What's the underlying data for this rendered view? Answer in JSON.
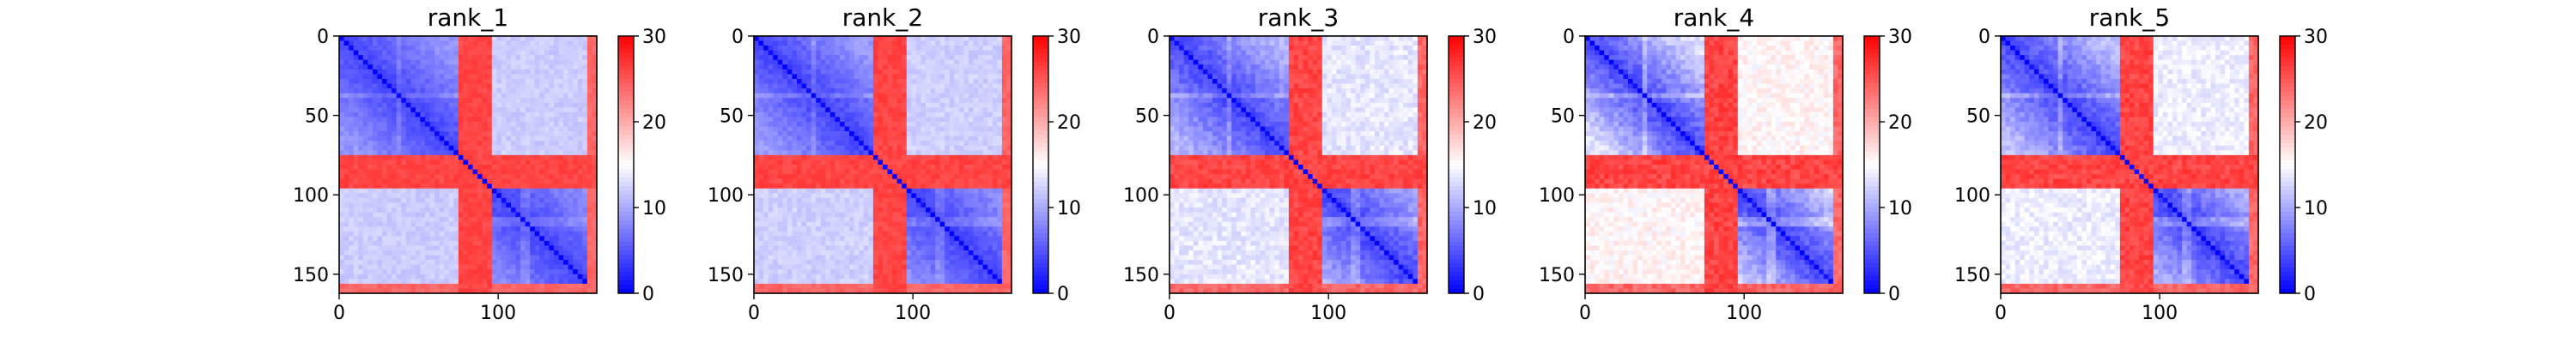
{
  "chart_data": [
    {
      "type": "heatmap",
      "title": "rank_1",
      "xticks": [
        "0",
        "100"
      ],
      "yticks": [
        "0",
        "50",
        "100",
        "150"
      ],
      "xlim": [
        0,
        162
      ],
      "ylim": [
        162,
        0
      ],
      "colorbar": {
        "ticks": [
          "0",
          "10",
          "20",
          "30"
        ],
        "range": [
          0,
          30
        ],
        "cmap": "bwr"
      },
      "variant": {
        "seed": 11,
        "block_strength": 0.4,
        "offdiag_noise": 0.2
      }
    },
    {
      "type": "heatmap",
      "title": "rank_2",
      "xticks": [
        "0",
        "100"
      ],
      "yticks": [
        "0",
        "50",
        "100",
        "150"
      ],
      "xlim": [
        0,
        162
      ],
      "ylim": [
        162,
        0
      ],
      "colorbar": {
        "ticks": [
          "0",
          "10",
          "20",
          "30"
        ],
        "range": [
          0,
          30
        ],
        "cmap": "bwr"
      },
      "variant": {
        "seed": 23,
        "block_strength": 0.42,
        "offdiag_noise": 0.22
      }
    },
    {
      "type": "heatmap",
      "title": "rank_3",
      "xticks": [
        "0",
        "100"
      ],
      "yticks": [
        "0",
        "50",
        "100",
        "150"
      ],
      "xlim": [
        0,
        162
      ],
      "ylim": [
        162,
        0
      ],
      "colorbar": {
        "ticks": [
          "0",
          "10",
          "20",
          "30"
        ],
        "range": [
          0,
          30
        ],
        "cmap": "bwr"
      },
      "variant": {
        "seed": 37,
        "block_strength": 0.55,
        "offdiag_noise": 0.3
      }
    },
    {
      "type": "heatmap",
      "title": "rank_4",
      "xticks": [
        "0",
        "100"
      ],
      "yticks": [
        "0",
        "50",
        "100",
        "150"
      ],
      "xlim": [
        0,
        162
      ],
      "ylim": [
        162,
        0
      ],
      "colorbar": {
        "ticks": [
          "0",
          "10",
          "20",
          "30"
        ],
        "range": [
          0,
          30
        ],
        "cmap": "bwr"
      },
      "variant": {
        "seed": 41,
        "block_strength": 0.75,
        "offdiag_noise": 0.35
      }
    },
    {
      "type": "heatmap",
      "title": "rank_5",
      "xticks": [
        "0",
        "100"
      ],
      "yticks": [
        "0",
        "50",
        "100",
        "150"
      ],
      "xlim": [
        0,
        162
      ],
      "ylim": [
        162,
        0
      ],
      "colorbar": {
        "ticks": [
          "0",
          "10",
          "20",
          "30"
        ],
        "range": [
          0,
          30
        ],
        "cmap": "bwr"
      },
      "variant": {
        "seed": 53,
        "block_strength": 0.6,
        "offdiag_noise": 0.32
      }
    }
  ]
}
